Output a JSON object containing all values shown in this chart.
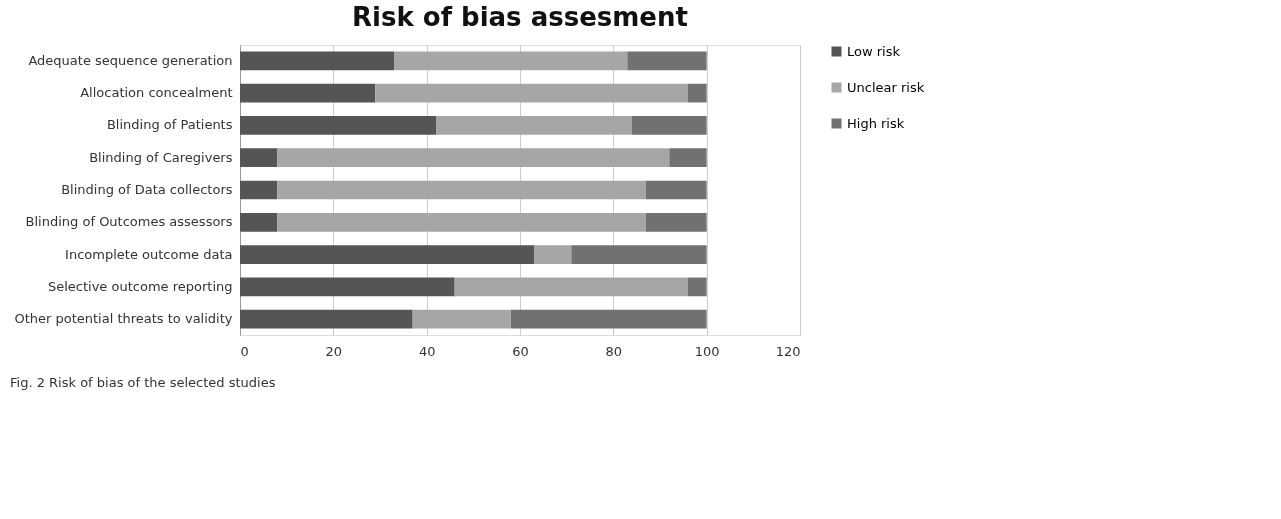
{
  "chart_data": {
    "type": "bar",
    "orientation": "horizontal",
    "stacked": true,
    "title": "Risk of bias assesment",
    "categories": [
      "Adequate sequence generation",
      "Allocation concealment",
      "Blinding of Patients",
      "Blinding of Caregivers",
      "Blinding of Data collectors",
      "Blinding of Outcomes assessors",
      "Incomplete outcome data",
      "Selective outcome reporting",
      "Other potential threats to validity"
    ],
    "series": [
      {
        "name": "Low risk",
        "color": "#555555",
        "values": [
          33,
          29,
          42,
          8,
          8,
          8,
          63,
          46,
          37
        ]
      },
      {
        "name": "Unclear risk",
        "color": "#a6a6a6",
        "values": [
          50,
          67,
          42,
          84,
          79,
          79,
          8,
          50,
          21
        ]
      },
      {
        "name": "High risk",
        "color": "#717171",
        "values": [
          17,
          4,
          16,
          8,
          13,
          13,
          29,
          4,
          42
        ]
      }
    ],
    "xlim": [
      0,
      120
    ],
    "xticks": [
      0,
      20,
      40,
      60,
      80,
      100,
      120
    ],
    "grid": "x",
    "legend": "right",
    "annotations": [
      "Fig. 2 Risk of bias of the selected studies"
    ]
  }
}
